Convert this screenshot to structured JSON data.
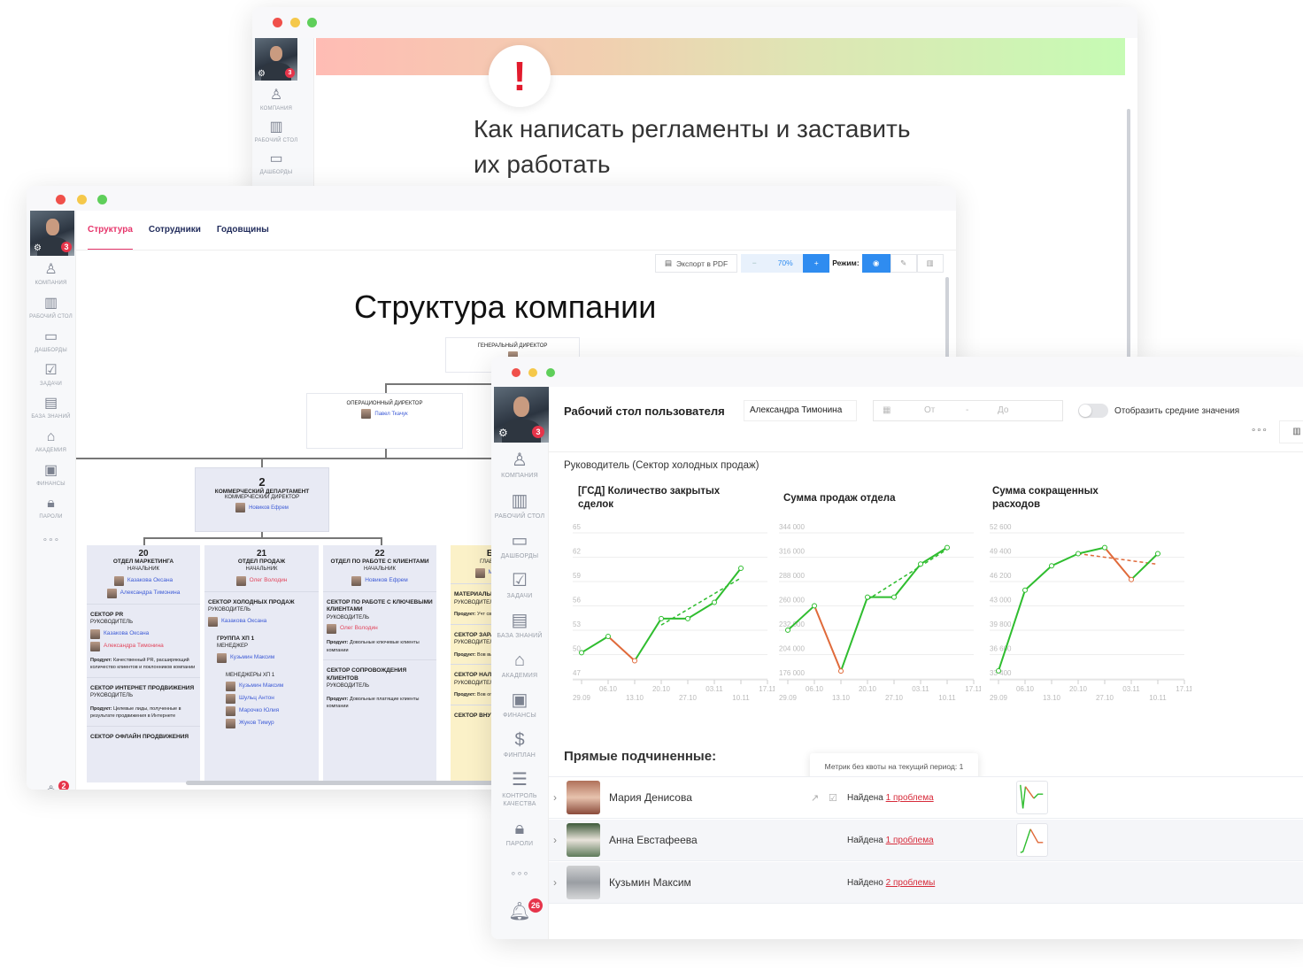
{
  "colors": {
    "accent": "#e6346a",
    "blue": "#2f8cf0",
    "up": "#2fbd2f",
    "down": "#e06a3a"
  },
  "user": {
    "notifications_count": "3"
  },
  "back_window": {
    "sidebar": [
      {
        "icon": "company-icon",
        "label": "КОМПАНИЯ"
      },
      {
        "icon": "desktop-icon",
        "label": "РАБОЧИЙ СТОЛ"
      },
      {
        "icon": "dashboards-icon",
        "label": "ДАШБОРДЫ"
      }
    ],
    "alert_icon": "!",
    "article_title": "Как написать регламенты и заставить их работать"
  },
  "structure_window": {
    "tabs": [
      {
        "label": "Структура",
        "active": true
      },
      {
        "label": "Сотрудники"
      },
      {
        "label": "Годовщины"
      }
    ],
    "toolbar": {
      "export_label": "Экспорт в PDF",
      "zoom_minus": "−",
      "zoom_value": "70%",
      "zoom_plus": "+",
      "mode_label": "Режим:"
    },
    "sidebar": [
      {
        "icon": "company-icon",
        "label": "КОМПАНИЯ"
      },
      {
        "icon": "desktop-icon",
        "label": "РАБОЧИЙ СТОЛ"
      },
      {
        "icon": "dashboards-icon",
        "label": "ДАШБОРДЫ"
      },
      {
        "icon": "tasks-icon",
        "label": "ЗАДАЧИ"
      },
      {
        "icon": "knowledge-icon",
        "label": "БАЗА ЗНАНИЙ"
      },
      {
        "icon": "academy-icon",
        "label": "АКАДЕМИЯ"
      },
      {
        "icon": "finance-icon",
        "label": "ФИНАНСЫ"
      },
      {
        "icon": "lock-icon",
        "label": "ПАРОЛИ"
      },
      {
        "icon": "more-icon",
        "label": "∘∘∘"
      }
    ],
    "bell_count": "2",
    "page_title": "Структура компании",
    "general_director": {
      "role": "ГЕНЕРАЛЬНЫЙ ДИРЕКТОР"
    },
    "operations_director": {
      "role": "ОПЕРАЦИОННЫЙ ДИРЕКТОР",
      "name": "Павел Ткачук"
    },
    "commercial": {
      "number": "2",
      "dept": "КОММЕРЧЕСКИЙ ДЕПАРТАМЕНТ",
      "role": "КОММЕРЧЕСКИЙ ДИРЕКТОР",
      "name": "Новиков Ефрем"
    },
    "columns": [
      {
        "number": "20",
        "dept": "ОТДЕЛ МАРКЕТИНГА",
        "role": "НАЧАЛЬНИК",
        "heads": [
          "Казакова Оксана",
          "Александра Тимонина"
        ],
        "s1": {
          "name": "СЕКТОР PR",
          "role": "РУКОВОДИТЕЛЬ",
          "people": [
            "Казакова Оксана",
            "Александра Тимонина"
          ],
          "product_label": "Продукт:",
          "product": "Качественный PR, расширяющий количество клиентов и поклонников компании"
        },
        "s2": {
          "name": "СЕКТОР ИНТЕРНЕТ ПРОДВИЖЕНИЯ",
          "role": "РУКОВОДИТЕЛЬ",
          "product_label": "Продукт:",
          "product": "Целевые лиды, полученные в результате продвижения в Интернете"
        },
        "s3": {
          "name": "СЕКТОР ОФЛАЙН ПРОДВИЖЕНИЯ"
        }
      },
      {
        "number": "21",
        "dept": "ОТДЕЛ ПРОДАЖ",
        "role": "НАЧАЛЬНИК",
        "head": "Олег Володин",
        "s1": {
          "name": "СЕКТОР ХОЛОДНЫХ ПРОДАЖ",
          "role": "РУКОВОДИТЕЛЬ",
          "person": "Казакова Оксана"
        },
        "group": {
          "name": "ГРУППА ХП 1",
          "role": "МЕНЕДЖЕР",
          "person": "Кузьмин Максим"
        },
        "managers": {
          "title": "МЕНЕДЖЕРЫ ХП 1",
          "people": [
            "Кузьмин Максим",
            "Шульц Антон",
            "Марочко Юлия",
            "Жуков Тимур"
          ]
        }
      },
      {
        "number": "22",
        "dept": "ОТДЕЛ ПО РАБОТЕ С КЛИЕНТАМИ",
        "role": "НАЧАЛЬНИК",
        "head": "Новиков Ефрем",
        "s1": {
          "name": "СЕКТОР ПО РАБОТЕ С КЛЮЧЕВЫМИ КЛИЕНТАМИ",
          "role": "РУКОВОДИТЕЛЬ",
          "person": "Олег Володин",
          "product_label": "Продукт:",
          "product": "Довольные ключевые клиенты компании"
        },
        "s2": {
          "name": "СЕКТОР СОПРОВОЖДЕНИЯ КЛИЕНТОВ",
          "role": "РУКОВОДИТЕЛЬ",
          "product_label": "Продукт:",
          "product": "Довольные платящие клиенты компании"
        }
      },
      {
        "number": "Б",
        "role": "ГЛАВ",
        "head": "М",
        "s1": {
          "name": "МАТЕРИАЛЬН",
          "role": "РУКОВОДИТЕЛ",
          "product_label": "Продукт:",
          "product": "Учт своей ценност"
        },
        "s2": {
          "name": "СЕКТОР ЗАРА",
          "role": "РУКОВОДИТЕЛ",
          "product_label": "Продукт:",
          "product": "Вов выплаченная"
        },
        "s3": {
          "name": "СЕКТОР НАЛО",
          "role": "РУКОВОДИТЕЛ",
          "product_label": "Продукт:",
          "product": "Вов оплаченные н"
        },
        "s4": {
          "name": "СЕКТОР ВНУТ"
        }
      }
    ]
  },
  "desktop_window": {
    "sidebar": [
      {
        "icon": "company-icon",
        "label": "КОМПАНИЯ"
      },
      {
        "icon": "desktop-icon",
        "label": "РАБОЧИЙ СТОЛ"
      },
      {
        "icon": "dashboards-icon",
        "label": "ДАШБОРДЫ"
      },
      {
        "icon": "tasks-icon",
        "label": "ЗАДАЧИ"
      },
      {
        "icon": "knowledge-icon",
        "label": "БАЗА ЗНАНИЙ"
      },
      {
        "icon": "academy-icon",
        "label": "АКАДЕМИЯ"
      },
      {
        "icon": "finance-icon",
        "label": "ФИНАНСЫ"
      },
      {
        "icon": "finplan-icon",
        "label": "ФИНПЛАН"
      },
      {
        "icon": "quality-icon",
        "label": "КОНТРОЛЬ КАЧЕСТВА"
      },
      {
        "icon": "lock-icon",
        "label": "ПАРОЛИ"
      },
      {
        "icon": "more-icon",
        "label": "∘∘∘"
      }
    ],
    "bell_count": "26",
    "title": "Рабочий стол пользователя",
    "user_select": "Александра Тимонина",
    "date_from_placeholder": "От",
    "date_sep": "-",
    "date_to_placeholder": "До",
    "toggle_label": "Отобразить средние значения",
    "toggle_on": false,
    "more": "∘∘∘",
    "role_line": "Руководитель (Сектор холодных продаж)",
    "subordinates_title": "Прямые подчиненные:",
    "tooltip": "Метрик без квоты на текущий период: 1",
    "subordinates": [
      {
        "name": "Мария Денисова",
        "status": "Найдена",
        "problem": "1 проблема"
      },
      {
        "name": "Анна Евстафеева",
        "status": "Найдена",
        "problem": "1 проблема"
      },
      {
        "name": "Кузьмин Максим",
        "status": "Найдено",
        "problem": "2 проблемы"
      }
    ]
  },
  "chart_data": [
    {
      "type": "line",
      "title": "[ГСД] Количество закрытых сделок",
      "x": [
        "29.09",
        "06.10",
        "13.10",
        "20.10",
        "27.10",
        "03.11",
        "10.11"
      ],
      "x_ticks": [
        "29.09",
        "06.10",
        "13.10",
        "20.10",
        "27.10",
        "03.11",
        "10.11",
        "17.11"
      ],
      "y_ticks": [
        "47",
        "50",
        "53",
        "56",
        "59",
        "62",
        "65"
      ],
      "ylim": [
        47,
        65
      ],
      "values": [
        49.8,
        51.8,
        48.8,
        54,
        54,
        56,
        60.2
      ],
      "trend": {
        "from": [
          "20.10",
          53.2
        ],
        "to": [
          "10.11",
          59
        ],
        "color": "#2fbd2f"
      },
      "grid": true
    },
    {
      "type": "line",
      "title": "Сумма продаж отдела",
      "x": [
        "29.09",
        "06.10",
        "13.10",
        "20.10",
        "27.10",
        "03.11",
        "10.11"
      ],
      "x_ticks": [
        "29.09",
        "06.10",
        "13.10",
        "20.10",
        "27.10",
        "03.11",
        "10.11",
        "17.11"
      ],
      "y_ticks": [
        "176 000",
        "204 000",
        "232 000",
        "260 000",
        "288 000",
        "316 000",
        "344 000"
      ],
      "ylim": [
        176000,
        344000
      ],
      "values": [
        228000,
        256000,
        181000,
        266000,
        266000,
        304000,
        323000
      ],
      "trend": {
        "from": [
          "20.10",
          263000
        ],
        "to": [
          "10.11",
          321000
        ],
        "color": "#2fbd2f"
      },
      "grid": true
    },
    {
      "type": "line",
      "title": "Сумма сокращенных расходов",
      "x": [
        "29.09",
        "06.10",
        "13.10",
        "20.10",
        "27.10",
        "03.11",
        "10.11"
      ],
      "x_ticks": [
        "29.09",
        "06.10",
        "13.10",
        "20.10",
        "27.10",
        "03.11",
        "10.11",
        "17.11"
      ],
      "y_ticks": [
        "33 400",
        "36 600",
        "39 800",
        "43 000",
        "46 200",
        "49 400",
        "52 600"
      ],
      "ylim": [
        33400,
        52600
      ],
      "values": [
        34000,
        44600,
        47800,
        49400,
        50200,
        46000,
        49400
      ],
      "trend": {
        "from": [
          "20.10",
          49400
        ],
        "to": [
          "10.11",
          48000
        ],
        "color": "#e06a3a"
      },
      "grid": true
    }
  ]
}
